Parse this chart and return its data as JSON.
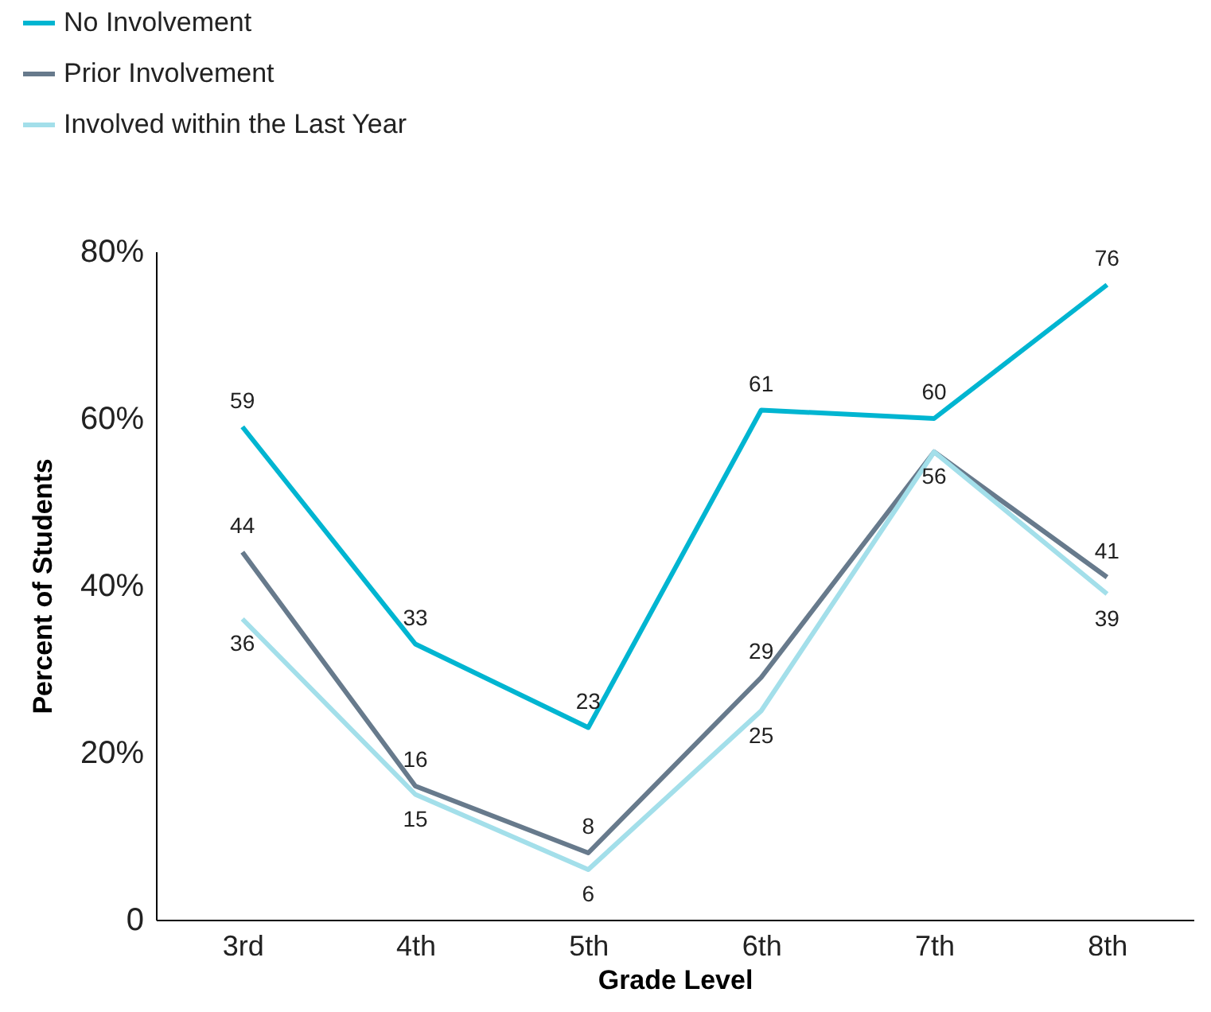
{
  "chart_data": {
    "type": "line",
    "xlabel": "Grade Level",
    "ylabel": "Percent of Students",
    "categories": [
      "3rd",
      "4th",
      "5th",
      "6th",
      "7th",
      "8th"
    ],
    "ylim": [
      0,
      80
    ],
    "yticks": [
      0,
      {
        "value": 20,
        "label": "20%"
      },
      {
        "value": 40,
        "label": "40%"
      },
      {
        "value": 60,
        "label": "60%"
      },
      {
        "value": 80,
        "label": "80%"
      }
    ],
    "grid": false,
    "legend": "top left",
    "line_style": "solid",
    "series": [
      {
        "name": "No Involvement",
        "color": "#00b5d1",
        "values": [
          59,
          33,
          23,
          61,
          60,
          76
        ],
        "value_labels": [
          "59",
          "33",
          "23",
          "61",
          "60",
          "76"
        ]
      },
      {
        "name": "Prior Involvement",
        "color": "#677a8c",
        "values": [
          44,
          16,
          8,
          29,
          56,
          41
        ],
        "value_labels": [
          "44",
          "16",
          "8",
          "29",
          null,
          "41"
        ]
      },
      {
        "name": "Involved within the Last Year",
        "color": "#a3dfea",
        "values": [
          36,
          15,
          6,
          25,
          56,
          39
        ],
        "value_labels": [
          "36",
          "15",
          "6",
          "25",
          "56",
          "39"
        ]
      }
    ]
  }
}
